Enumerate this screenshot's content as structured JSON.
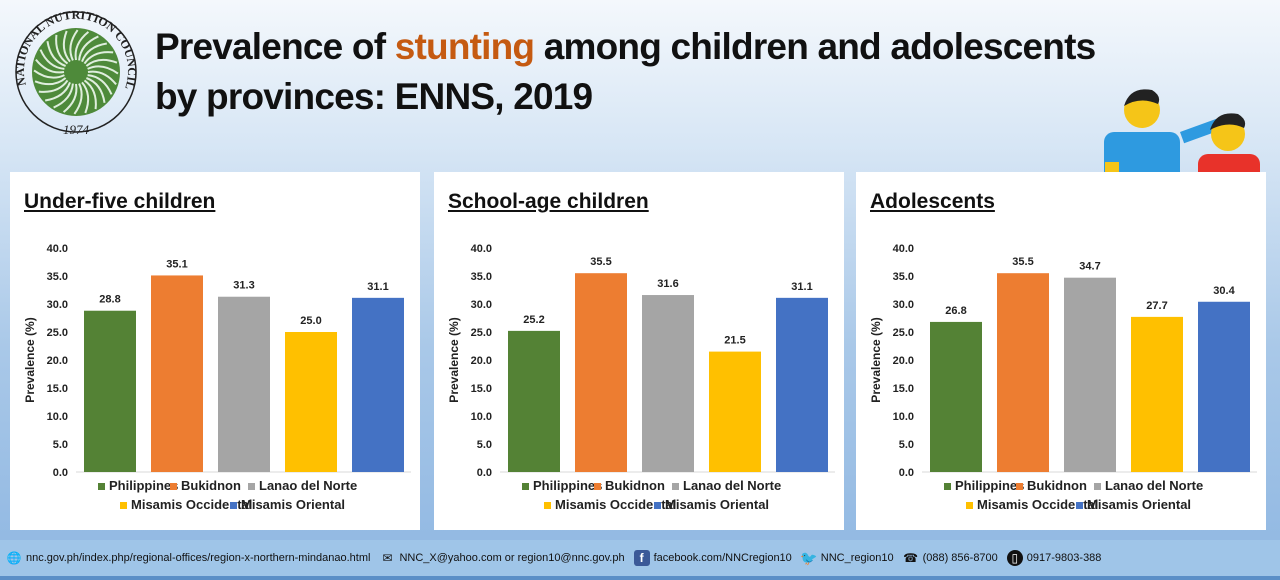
{
  "header": {
    "title_pre": "Prevalence of ",
    "title_highlight": "stunting",
    "title_post": " among children and adolescents",
    "title_line2": "by provinces: ENNS, 2019",
    "highlight_color": "#c55a11",
    "logo": {
      "text_top": "NATIONAL NUTRITION COUNCIL",
      "year": "1974",
      "color": "#4e8a3a"
    }
  },
  "chart_data": [
    {
      "type": "bar",
      "title": "Under-five children",
      "ylabel": "Prevalence (%)",
      "ylim": [
        0,
        40
      ],
      "yticks": [
        "0.0",
        "5.0",
        "10.0",
        "15.0",
        "20.0",
        "25.0",
        "30.0",
        "35.0",
        "40.0"
      ],
      "grid": false,
      "legend": "bottom",
      "categories": [
        "Philippines",
        "Bukidnon",
        "Lanao del Norte",
        "Misamis Occidental",
        "Misamis Oriental"
      ],
      "values": [
        28.8,
        35.1,
        31.3,
        25.0,
        31.1
      ]
    },
    {
      "type": "bar",
      "title": "School-age children",
      "ylabel": "Prevalence (%)",
      "ylim": [
        0,
        40
      ],
      "yticks": [
        "0.0",
        "5.0",
        "10.0",
        "15.0",
        "20.0",
        "25.0",
        "30.0",
        "35.0",
        "40.0"
      ],
      "grid": false,
      "legend": "bottom",
      "categories": [
        "Philippines",
        "Bukidnon",
        "Lanao del Norte",
        "Misamis Occidental",
        "Misamis Oriental"
      ],
      "values": [
        25.2,
        35.5,
        31.6,
        21.5,
        31.1
      ]
    },
    {
      "type": "bar",
      "title": "Adolescents",
      "ylabel": "Prevalence (%)",
      "ylim": [
        0,
        40
      ],
      "yticks": [
        "0.0",
        "5.0",
        "10.0",
        "15.0",
        "20.0",
        "25.0",
        "30.0",
        "35.0",
        "40.0"
      ],
      "grid": false,
      "legend": "bottom",
      "categories": [
        "Philippines",
        "Bukidnon",
        "Lanao del Norte",
        "Misamis Occidental",
        "Misamis Oriental"
      ],
      "values": [
        26.8,
        35.5,
        34.7,
        27.7,
        30.4
      ]
    }
  ],
  "colors": [
    "#548235",
    "#ed7d31",
    "#a5a5a5",
    "#ffc000",
    "#4472c4"
  ],
  "footer": [
    {
      "icon": "globe-icon",
      "text": "nnc.gov.ph/index.php/regional-offices/region-x-northern-mindanao.html"
    },
    {
      "icon": "email-icon",
      "text": "NNC_X@yahoo.com or region10@nnc.gov.ph"
    },
    {
      "icon": "facebook-icon",
      "text": "facebook.com/NNCregion10"
    },
    {
      "icon": "twitter-icon",
      "text": "NNC_region10"
    },
    {
      "icon": "telephone-icon",
      "text": "(088) 856-8700"
    },
    {
      "icon": "mobile-phone-icon",
      "text": "0917-9803-388"
    }
  ]
}
